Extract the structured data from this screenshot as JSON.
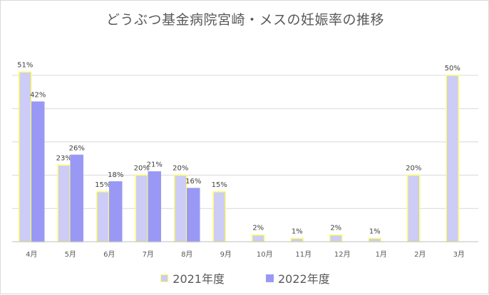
{
  "chart_data": {
    "type": "bar",
    "title": "どうぶつ基金病院宮崎・メスの妊娠率の推移",
    "categories": [
      "4月",
      "5月",
      "6月",
      "7月",
      "8月",
      "9月",
      "10月",
      "11月",
      "12月",
      "1月",
      "2月",
      "3月"
    ],
    "series": [
      {
        "name": "2021年度",
        "values": [
          51,
          23,
          15,
          20,
          20,
          15,
          2,
          1,
          2,
          1,
          20,
          50
        ],
        "labels": [
          "51%",
          "23%",
          "15%",
          "20%",
          "20%",
          "15%",
          "2%",
          "1%",
          "2%",
          "1%",
          "20%",
          "50%"
        ],
        "color": "#ccccf7",
        "border": "#ffff66"
      },
      {
        "name": "2022年度",
        "values": [
          42,
          26,
          18,
          21,
          16,
          null,
          null,
          null,
          null,
          null,
          null,
          null
        ],
        "labels": [
          "42%",
          "26%",
          "18%",
          "21%",
          "16%",
          "",
          "",
          "",
          "",
          "",
          "",
          ""
        ],
        "color": "#9999f5",
        "border": "#9999f5"
      }
    ],
    "ylim": [
      0,
      50
    ],
    "grid": true,
    "legend_position": "bottom"
  }
}
